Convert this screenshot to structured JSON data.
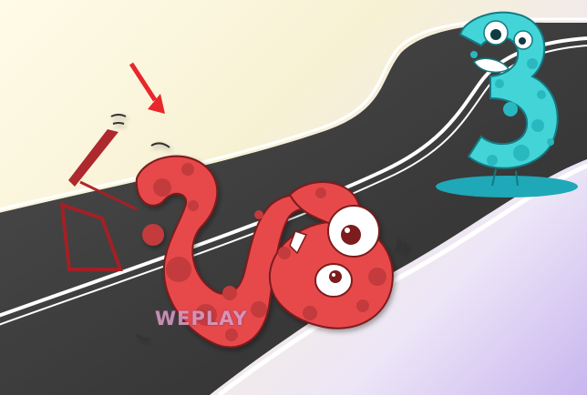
{
  "scene": {
    "background_colors": [
      "#fffbe7",
      "#f7f1d4",
      "#ede6f7",
      "#c8b6ef"
    ],
    "road_color": "#3e3e3e",
    "road_line_color": "#ffffff"
  },
  "characters": {
    "red_number": {
      "digit": "3",
      "orientation": "rotated-fallen",
      "color": "#e7494b",
      "spot_color": "#c33a3d"
    },
    "cyan_number": {
      "digit": "3",
      "orientation": "upright",
      "color": "#43d4d8",
      "spot_color": "#29b8c0"
    }
  },
  "pointer": {
    "icon": "arrow-down-right-icon",
    "color": "#e8262c"
  },
  "watermark": {
    "text": "WEPLAY"
  }
}
